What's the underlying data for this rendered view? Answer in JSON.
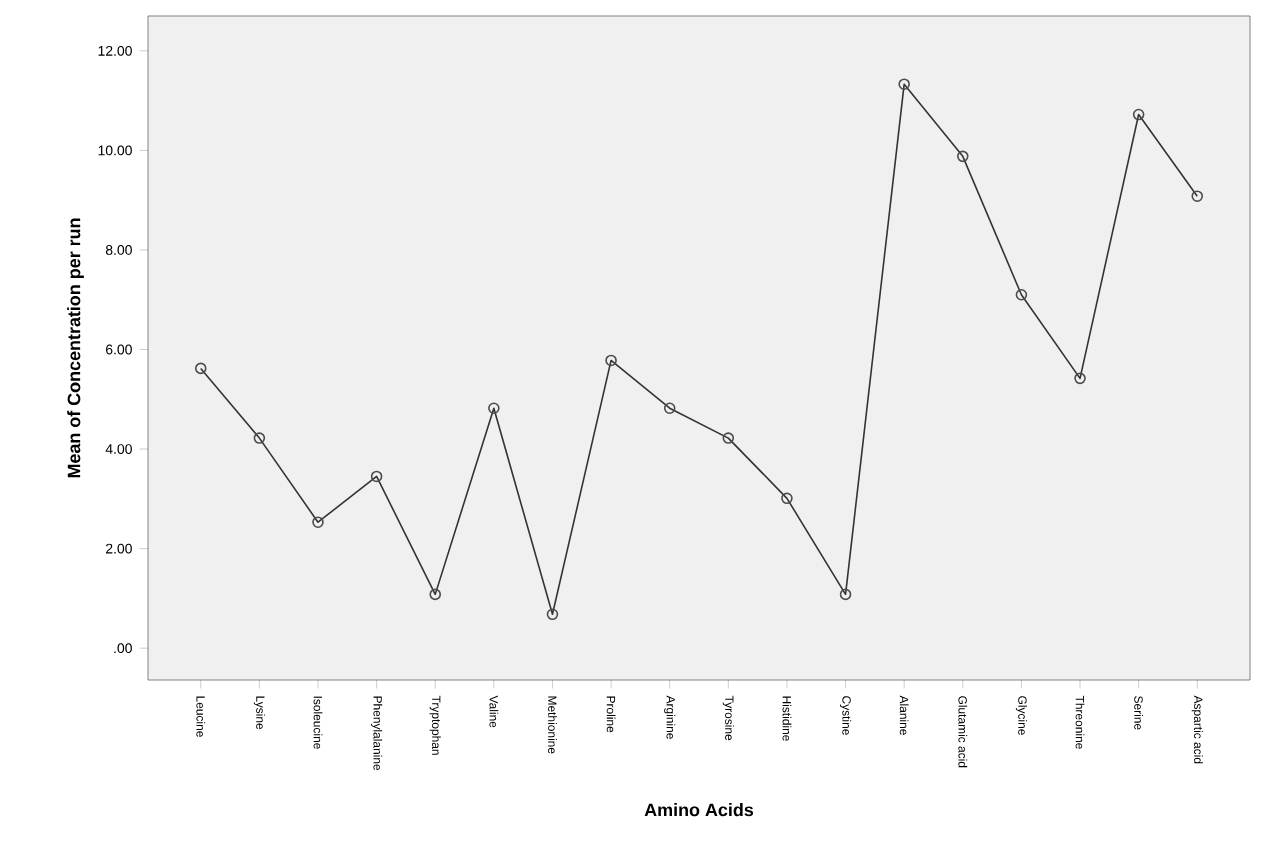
{
  "chart_data": {
    "type": "line",
    "xlabel": "Amino Acids",
    "ylabel": "Mean of Concentration per run",
    "categories": [
      "Leucine",
      "Lysine",
      "Isoleucine",
      "Phenylalanine",
      "Tryptophan",
      "Valine",
      "Methionine",
      "Proline",
      "Arginine",
      "Tyrosine",
      "Histidine",
      "Cystine",
      "Alanine",
      "Glutamic acid",
      "Glycine",
      "Threonine",
      "Serine",
      "Aspartic acid"
    ],
    "values": [
      5.62,
      4.22,
      2.53,
      3.45,
      1.08,
      4.82,
      0.68,
      5.78,
      4.82,
      4.22,
      3.01,
      1.08,
      11.33,
      9.88,
      7.1,
      5.42,
      10.72,
      9.08
    ],
    "color": "#333333",
    "marker": "circle",
    "line_style": "solid",
    "grid": false,
    "ylim": [
      -0.64,
      12.7
    ],
    "yticks": [
      {
        "value": 0,
        "label": ".00"
      },
      {
        "value": 2,
        "label": "2.00"
      },
      {
        "value": 4,
        "label": "4.00"
      },
      {
        "value": 6,
        "label": "6.00"
      },
      {
        "value": 8,
        "label": "8.00"
      },
      {
        "value": 10,
        "label": "10.00"
      },
      {
        "value": 12,
        "label": "12.00"
      }
    ]
  }
}
